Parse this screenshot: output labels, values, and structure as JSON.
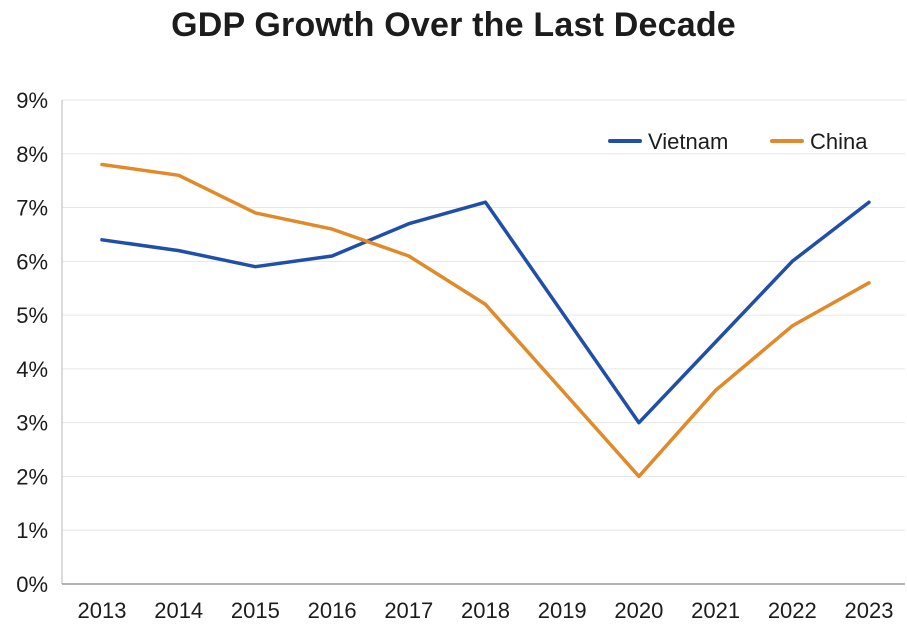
{
  "chart_data": {
    "type": "line",
    "title": "GDP Growth Over the Last Decade",
    "xlabel": "",
    "ylabel": "",
    "x": [
      "2013",
      "2014",
      "2015",
      "2016",
      "2017",
      "2018",
      "2019",
      "2020",
      "2021",
      "2022",
      "2023"
    ],
    "ylim": [
      0,
      9
    ],
    "yticks": [
      "0%",
      "1%",
      "2%",
      "3%",
      "4%",
      "5%",
      "6%",
      "7%",
      "8%",
      "9%"
    ],
    "grid": true,
    "legend_position": "top-right",
    "series": [
      {
        "name": "Vietnam",
        "color": "#1f4fa8",
        "values": [
          6.4,
          6.2,
          5.9,
          6.1,
          6.7,
          7.1,
          null,
          3.0,
          4.5,
          6.0,
          7.1
        ]
      },
      {
        "name": "China",
        "color": "#e08a2a",
        "values": [
          7.8,
          7.6,
          6.9,
          6.6,
          6.1,
          5.2,
          null,
          2.0,
          3.6,
          4.8,
          5.6
        ]
      }
    ]
  }
}
